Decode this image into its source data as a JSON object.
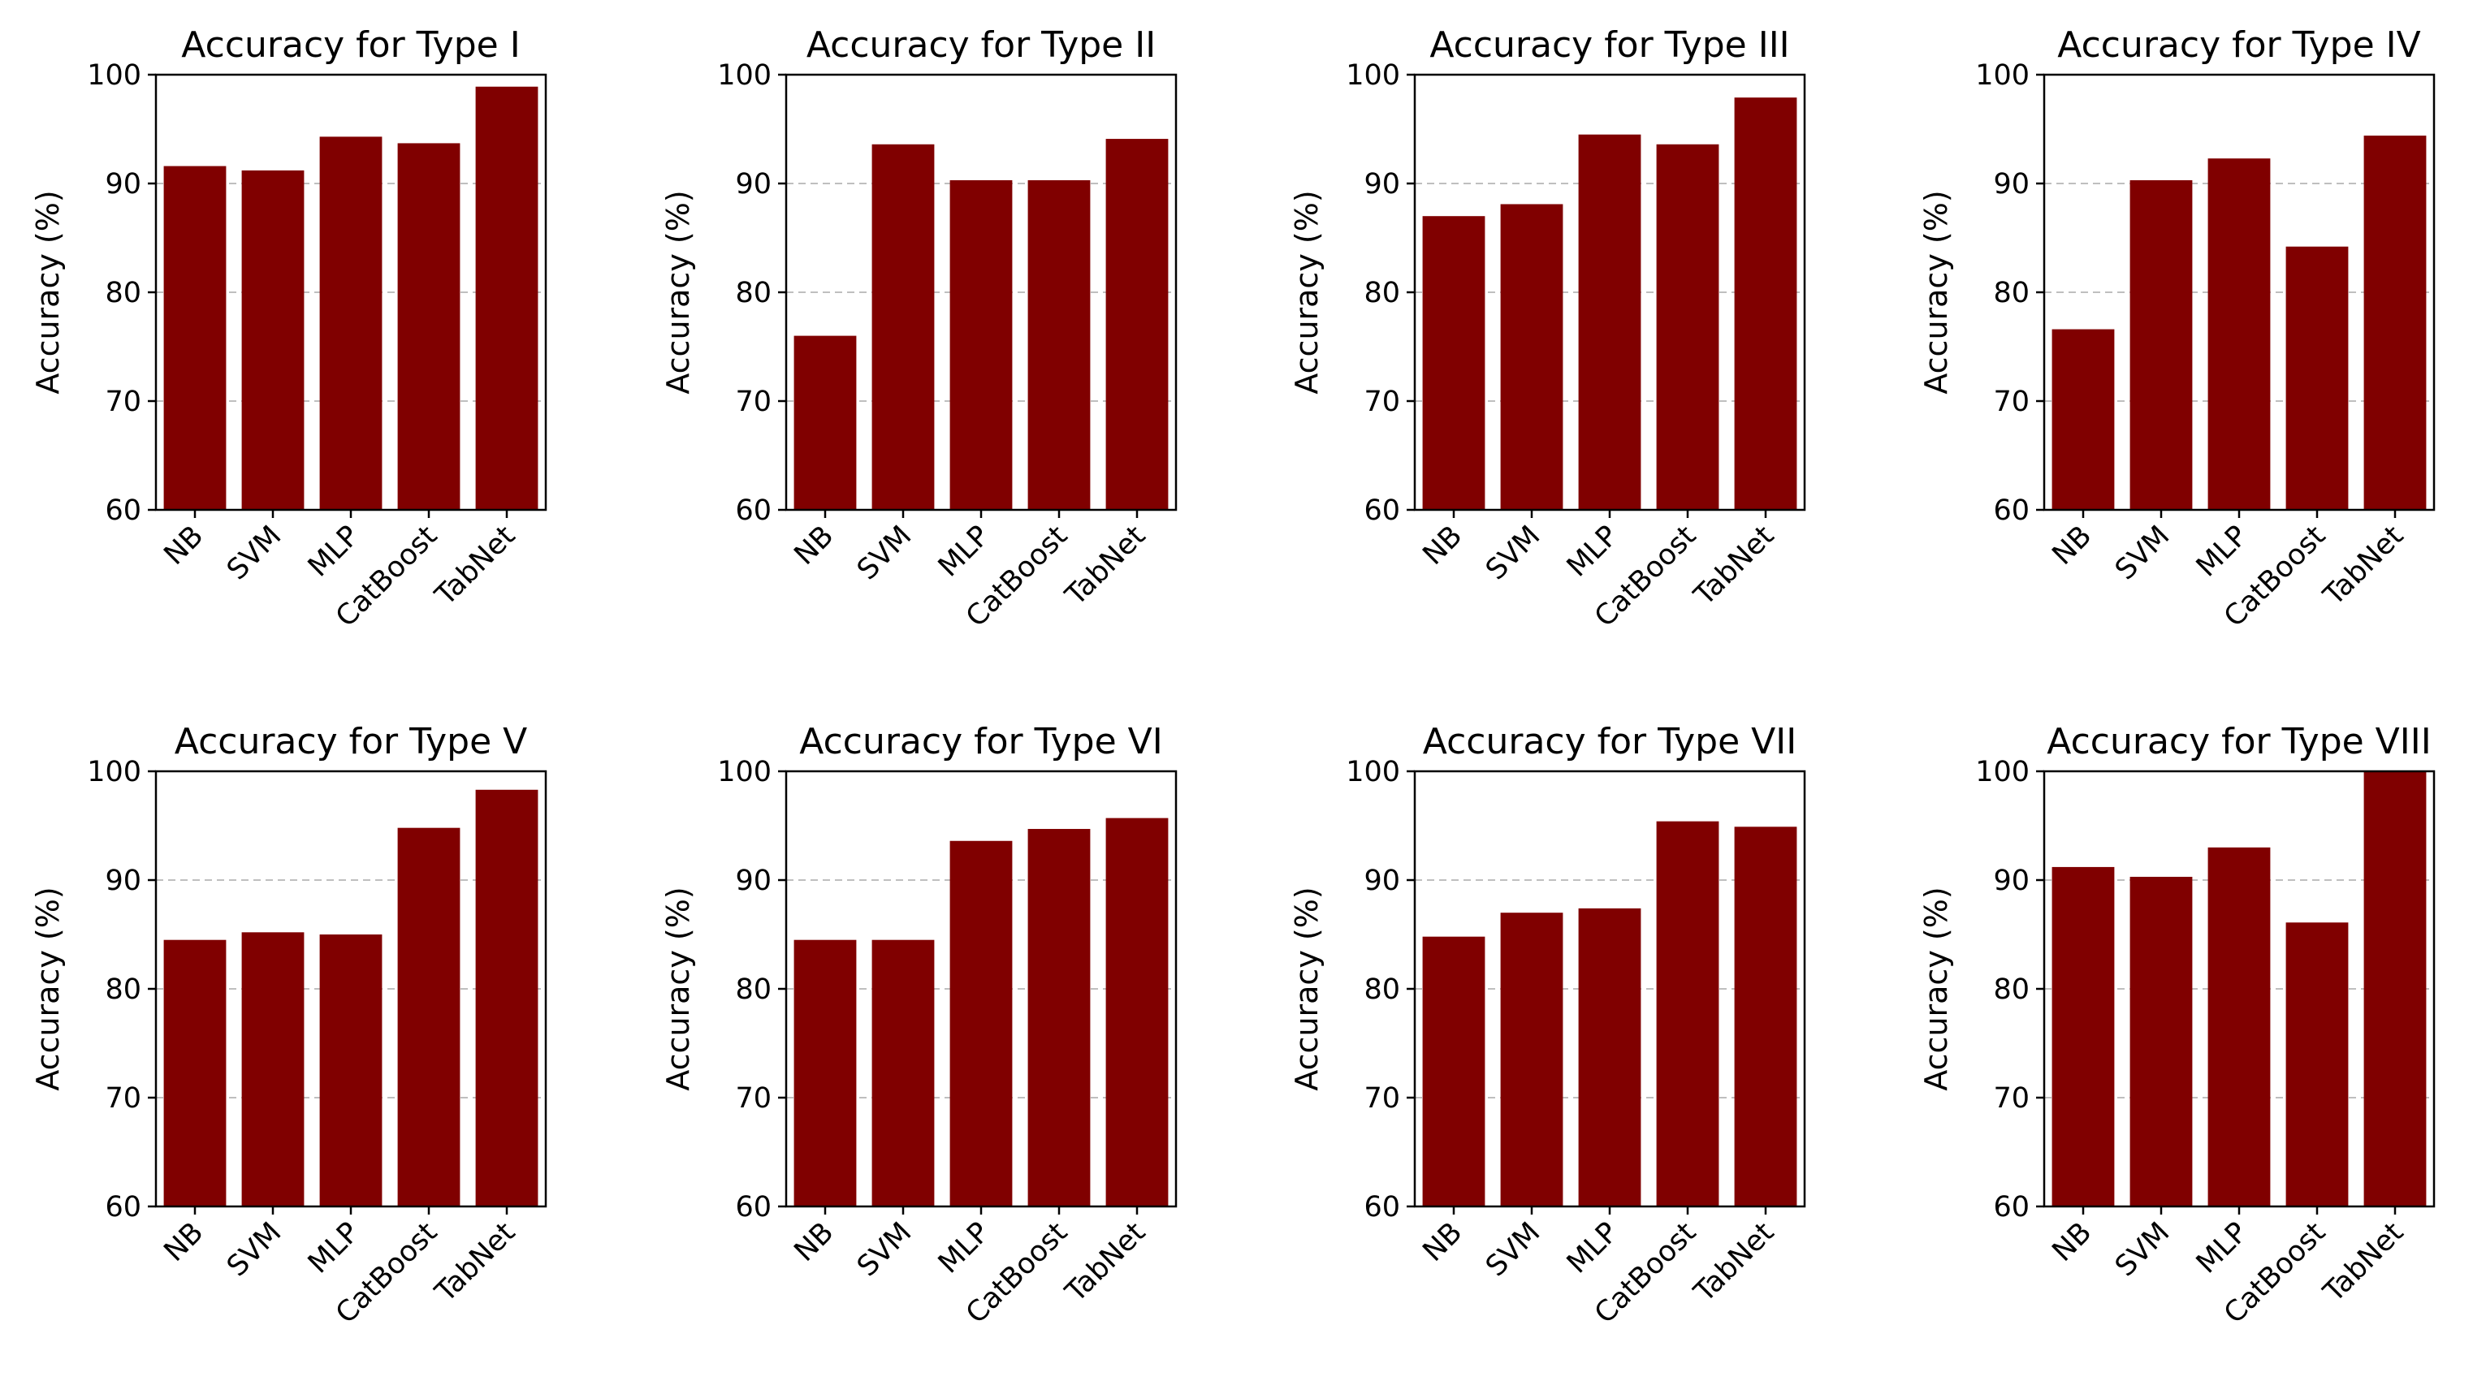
{
  "style": {
    "bar_color": "#800000",
    "grid_color": "#bfbfbf",
    "axis_color": "#000000",
    "background": "#ffffff"
  },
  "chart_data": [
    {
      "type": "bar",
      "title": "Accuracy for Type I",
      "ylabel": "Accuracy (%)",
      "xlabel": "",
      "ylim": [
        60,
        100
      ],
      "yticks": [
        "60",
        "70",
        "80",
        "90",
        "100"
      ],
      "grid": "y-dashed",
      "categories": [
        "NB",
        "SVM",
        "MLP",
        "CatBoost",
        "TabNet"
      ],
      "values": [
        91.6,
        91.2,
        94.3,
        93.7,
        98.9
      ]
    },
    {
      "type": "bar",
      "title": "Accuracy for Type II",
      "ylabel": "Accuracy (%)",
      "xlabel": "",
      "ylim": [
        60,
        100
      ],
      "yticks": [
        "60",
        "70",
        "80",
        "90",
        "100"
      ],
      "grid": "y-dashed",
      "categories": [
        "NB",
        "SVM",
        "MLP",
        "CatBoost",
        "TabNet"
      ],
      "values": [
        76.0,
        93.6,
        90.3,
        90.3,
        94.1
      ]
    },
    {
      "type": "bar",
      "title": "Accuracy for Type III",
      "ylabel": "Accuracy (%)",
      "xlabel": "",
      "ylim": [
        60,
        100
      ],
      "yticks": [
        "60",
        "70",
        "80",
        "90",
        "100"
      ],
      "grid": "y-dashed",
      "categories": [
        "NB",
        "SVM",
        "MLP",
        "CatBoost",
        "TabNet"
      ],
      "values": [
        87.0,
        88.1,
        94.5,
        93.6,
        97.9
      ]
    },
    {
      "type": "bar",
      "title": "Accuracy for Type IV",
      "ylabel": "Accuracy (%)",
      "xlabel": "",
      "ylim": [
        60,
        100
      ],
      "yticks": [
        "60",
        "70",
        "80",
        "90",
        "100"
      ],
      "grid": "y-dashed",
      "categories": [
        "NB",
        "SVM",
        "MLP",
        "CatBoost",
        "TabNet"
      ],
      "values": [
        76.6,
        90.3,
        92.3,
        84.2,
        94.4
      ]
    },
    {
      "type": "bar",
      "title": "Accuracy for Type V",
      "ylabel": "Accuracy (%)",
      "xlabel": "",
      "ylim": [
        60,
        100
      ],
      "yticks": [
        "60",
        "70",
        "80",
        "90",
        "100"
      ],
      "grid": "y-dashed",
      "categories": [
        "NB",
        "SVM",
        "MLP",
        "CatBoost",
        "TabNet"
      ],
      "values": [
        84.5,
        85.2,
        85.0,
        94.8,
        98.3
      ]
    },
    {
      "type": "bar",
      "title": "Accuracy for Type VI",
      "ylabel": "Accuracy (%)",
      "xlabel": "",
      "ylim": [
        60,
        100
      ],
      "yticks": [
        "60",
        "70",
        "80",
        "90",
        "100"
      ],
      "grid": "y-dashed",
      "categories": [
        "NB",
        "SVM",
        "MLP",
        "CatBoost",
        "TabNet"
      ],
      "values": [
        84.5,
        84.5,
        93.6,
        94.7,
        95.7
      ]
    },
    {
      "type": "bar",
      "title": "Accuracy for Type VII",
      "ylabel": "Accuracy (%)",
      "xlabel": "",
      "ylim": [
        60,
        100
      ],
      "yticks": [
        "60",
        "70",
        "80",
        "90",
        "100"
      ],
      "grid": "y-dashed",
      "categories": [
        "NB",
        "SVM",
        "MLP",
        "CatBoost",
        "TabNet"
      ],
      "values": [
        84.8,
        87.0,
        87.4,
        95.4,
        94.9
      ]
    },
    {
      "type": "bar",
      "title": "Accuracy for Type VIII",
      "ylabel": "Accuracy (%)",
      "xlabel": "",
      "ylim": [
        60,
        100
      ],
      "yticks": [
        "60",
        "70",
        "80",
        "90",
        "100"
      ],
      "grid": "y-dashed",
      "categories": [
        "NB",
        "SVM",
        "MLP",
        "CatBoost",
        "TabNet"
      ],
      "values": [
        91.2,
        90.3,
        93.0,
        86.1,
        100.0
      ]
    }
  ]
}
